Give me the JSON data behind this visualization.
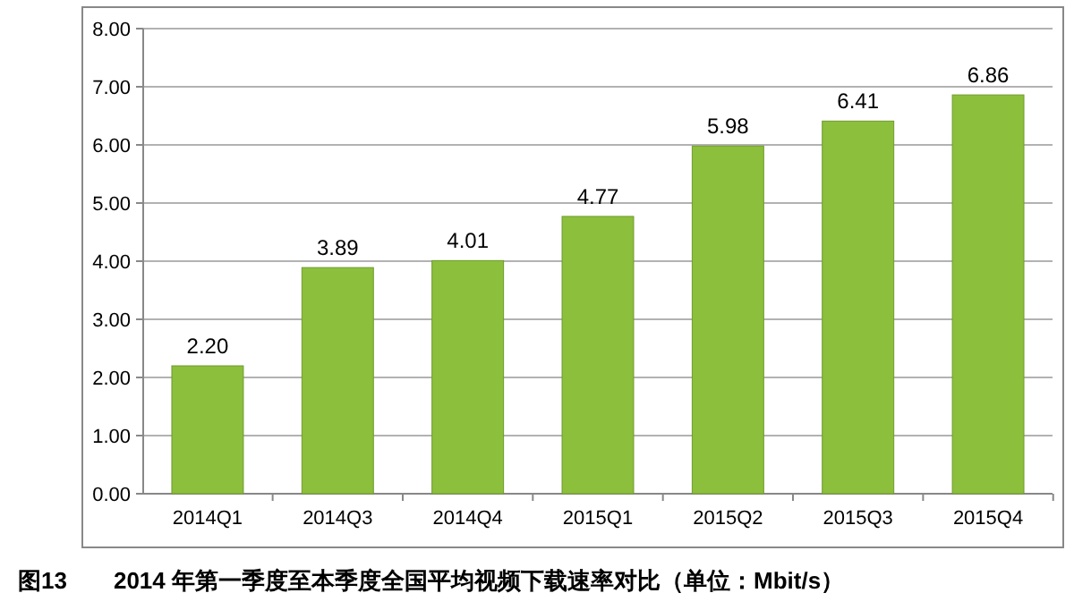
{
  "chart_data": {
    "type": "bar",
    "title": "图13　　2014 年第一季度至本季度全国平均视频下载速率对比（单位：Mbit/s）",
    "categories": [
      "2014Q1",
      "2014Q3",
      "2014Q4",
      "2015Q1",
      "2015Q2",
      "2015Q3",
      "2015Q4"
    ],
    "values": [
      2.2,
      3.89,
      4.01,
      4.77,
      5.98,
      6.41,
      6.86
    ],
    "value_labels": [
      "2.20",
      "3.89",
      "4.01",
      "4.77",
      "5.98",
      "6.41",
      "6.86"
    ],
    "color": "#8cbf3c",
    "ylim": [
      0,
      8
    ],
    "yticks": [
      {
        "value": 0,
        "label": "0.00"
      },
      {
        "value": 1,
        "label": "1.00"
      },
      {
        "value": 2,
        "label": "2.00"
      },
      {
        "value": 3,
        "label": "3.00"
      },
      {
        "value": 4,
        "label": "4.00"
      },
      {
        "value": 5,
        "label": "5.00"
      },
      {
        "value": 6,
        "label": "6.00"
      },
      {
        "value": 7,
        "label": "7.00"
      },
      {
        "value": 8,
        "label": "8.00"
      }
    ],
    "grid": "y"
  }
}
